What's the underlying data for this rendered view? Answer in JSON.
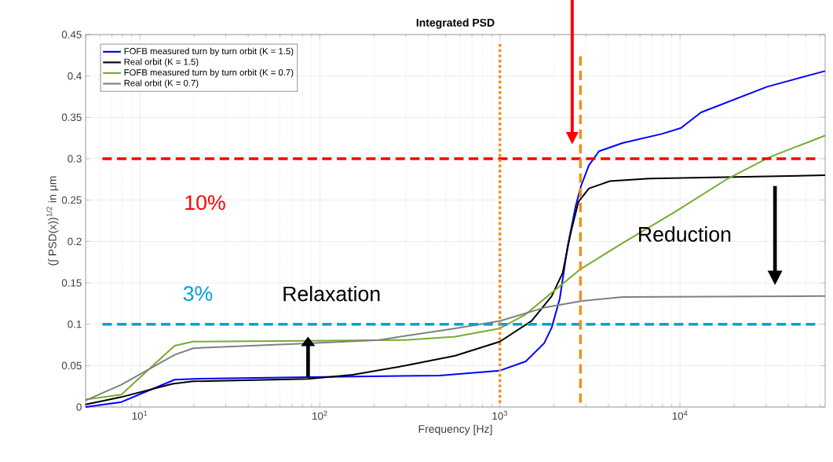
{
  "chart_data": {
    "type": "line",
    "title": "Integrated PSD",
    "xlabel": "Frequency [Hz]",
    "ylabel": "(∫ PSD(x))$^{1/2}$ in μm",
    "log": "x",
    "grid": true,
    "legend": "top left",
    "marker": "none",
    "line_style": "solid",
    "xlim": [
      5,
      64000
    ],
    "ylim": [
      0,
      0.45
    ],
    "xticks": [
      {
        "value": 10,
        "label": "10$^{1}$"
      },
      {
        "value": 100,
        "label": "10$^{2}$"
      },
      {
        "value": 1000,
        "label": "10$^{3}$"
      },
      {
        "value": 10000,
        "label": "10$^{4}$"
      }
    ],
    "yticks": [
      0,
      0.05,
      0.1,
      0.15,
      0.2,
      0.25,
      0.3,
      0.35,
      0.4,
      0.45
    ],
    "series": [
      {
        "name": "FOFB measured turn by turn orbit (K = 1.5)",
        "color": "#0000ff",
        "x": [
          5,
          7.9,
          15.6,
          19.8,
          86,
          461,
          1000,
          1390,
          1760,
          1940,
          2150,
          2380,
          2630,
          2820,
          3120,
          3550,
          4800,
          7940,
          10100,
          13100,
          30500,
          64000
        ],
        "values": [
          0,
          0.006,
          0.033,
          0.034,
          0.036,
          0.038,
          0.044,
          0.055,
          0.077,
          0.096,
          0.131,
          0.195,
          0.242,
          0.267,
          0.292,
          0.309,
          0.319,
          0.33,
          0.337,
          0.356,
          0.387,
          0.406
        ]
      },
      {
        "name": "Real orbit  (K = 1.5)",
        "color": "#000000",
        "x": [
          5,
          7.9,
          15.2,
          19.8,
          86,
          152,
          299,
          564,
          1000,
          1500,
          1940,
          2230,
          2470,
          2730,
          3120,
          4080,
          6760,
          64000
        ],
        "values": [
          0.003,
          0.012,
          0.028,
          0.031,
          0.034,
          0.039,
          0.05,
          0.062,
          0.079,
          0.104,
          0.134,
          0.162,
          0.21,
          0.248,
          0.264,
          0.273,
          0.276,
          0.28
        ]
      },
      {
        "name": "FOFB measured turn by turn orbit (K = 0.7)",
        "color": "#77ac30",
        "x": [
          5,
          7.9,
          15.6,
          19.8,
          86,
          299,
          564,
          1000,
          1390,
          1940,
          2820,
          4800,
          9420,
          18450,
          31500,
          64000
        ],
        "values": [
          0.009,
          0.015,
          0.074,
          0.079,
          0.08,
          0.081,
          0.085,
          0.095,
          0.112,
          0.138,
          0.167,
          0.198,
          0.236,
          0.276,
          0.302,
          0.328
        ]
      },
      {
        "name": "Real orbit (K = 0.7)",
        "color": "#808080",
        "x": [
          5,
          7.9,
          15.6,
          19.8,
          86,
          213,
          564,
          1000,
          1760,
          2820,
          4800,
          64000
        ],
        "values": [
          0.008,
          0.027,
          0.063,
          0.071,
          0.077,
          0.081,
          0.095,
          0.104,
          0.12,
          0.128,
          0.133,
          0.134
        ]
      }
    ],
    "ref_lines": [
      {
        "axis": "y",
        "value": 0.3,
        "color": "#ff0000",
        "line_style": "dashed"
      },
      {
        "axis": "y",
        "value": 0.1,
        "color": "#00a0e0",
        "line_style": "dashed"
      },
      {
        "axis": "x",
        "value": 1000,
        "color": "#f0901e",
        "line_style": "dotted"
      },
      {
        "axis": "x",
        "value": 2800,
        "color": "#f0901e",
        "line_style": "dashed"
      }
    ],
    "annotations": [
      "10%",
      "3%",
      "Relaxation",
      "Reduction"
    ]
  }
}
